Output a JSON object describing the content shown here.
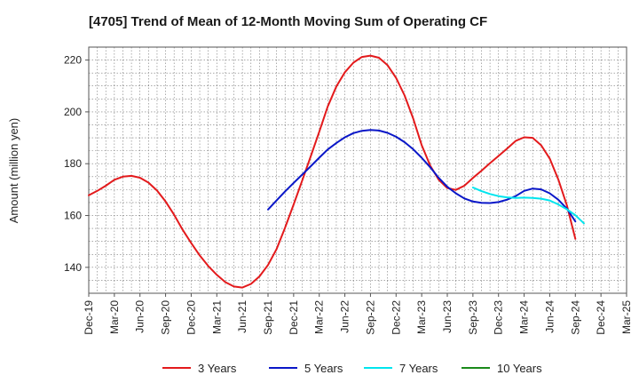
{
  "chart_data": {
    "type": "line",
    "title": "[4705]  Trend of Mean of 12-Month Moving Sum of Operating CF",
    "xlabel": "",
    "ylabel": "Amount (million yen)",
    "ylim": [
      130,
      225
    ],
    "yticks": [
      140,
      160,
      180,
      200,
      220
    ],
    "x_tick_labels": [
      "Dec-19",
      "Mar-20",
      "Jun-20",
      "Sep-20",
      "Dec-20",
      "Mar-21",
      "Jun-21",
      "Sep-21",
      "Dec-21",
      "Mar-22",
      "Jun-22",
      "Sep-22",
      "Dec-22",
      "Mar-23",
      "Jun-23",
      "Sep-23",
      "Dec-23",
      "Mar-24",
      "Jun-24",
      "Sep-24",
      "Dec-24",
      "Mar-25"
    ],
    "grid": true,
    "legend_position": "bottom",
    "series": [
      {
        "name": "3 Years",
        "color": "#e31a1c",
        "start_month": 0,
        "values": [
          167.8,
          169.5,
          171.5,
          173.8,
          175.0,
          175.3,
          174.6,
          172.7,
          169.6,
          165.4,
          160.3,
          154.5,
          149.4,
          144.6,
          140.5,
          137.1,
          134.3,
          132.6,
          132.2,
          133.6,
          136.5,
          140.9,
          147.0,
          155.3,
          164.3,
          173.5,
          182.8,
          192.3,
          202.1,
          209.8,
          215.3,
          219.0,
          221.2,
          221.7,
          220.9,
          218.0,
          213.1,
          206.3,
          197.5,
          187.2,
          179.2,
          173.8,
          170.6,
          169.9,
          171.5,
          174.5,
          177.3,
          180.2,
          183.0,
          185.8,
          188.8,
          190.2,
          190.0,
          187.1,
          182.0,
          174.0,
          164.0,
          151.0
        ]
      },
      {
        "name": "5 Years",
        "color": "#0a17c8",
        "start_month": 21,
        "values": [
          162.3,
          165.8,
          169.3,
          172.6,
          175.8,
          179.0,
          182.3,
          185.5,
          188.0,
          190.2,
          191.8,
          192.7,
          193.0,
          192.8,
          191.9,
          190.4,
          188.3,
          185.6,
          182.3,
          178.6,
          174.5,
          171.1,
          168.6,
          166.6,
          165.4,
          164.9,
          164.8,
          165.2,
          166.1,
          167.5,
          169.5,
          170.4,
          170.1,
          168.6,
          166.1,
          162.7,
          157.7
        ]
      },
      {
        "name": "7 Years",
        "color": "#00e5ee",
        "start_month": 45,
        "values": [
          170.8,
          169.4,
          168.3,
          167.5,
          167.0,
          166.8,
          166.9,
          166.8,
          166.5,
          165.8,
          164.3,
          162.4,
          160.1,
          157.0
        ]
      },
      {
        "name": "10 Years",
        "color": "#1a8a1a",
        "start_month": 0,
        "values": []
      }
    ]
  }
}
